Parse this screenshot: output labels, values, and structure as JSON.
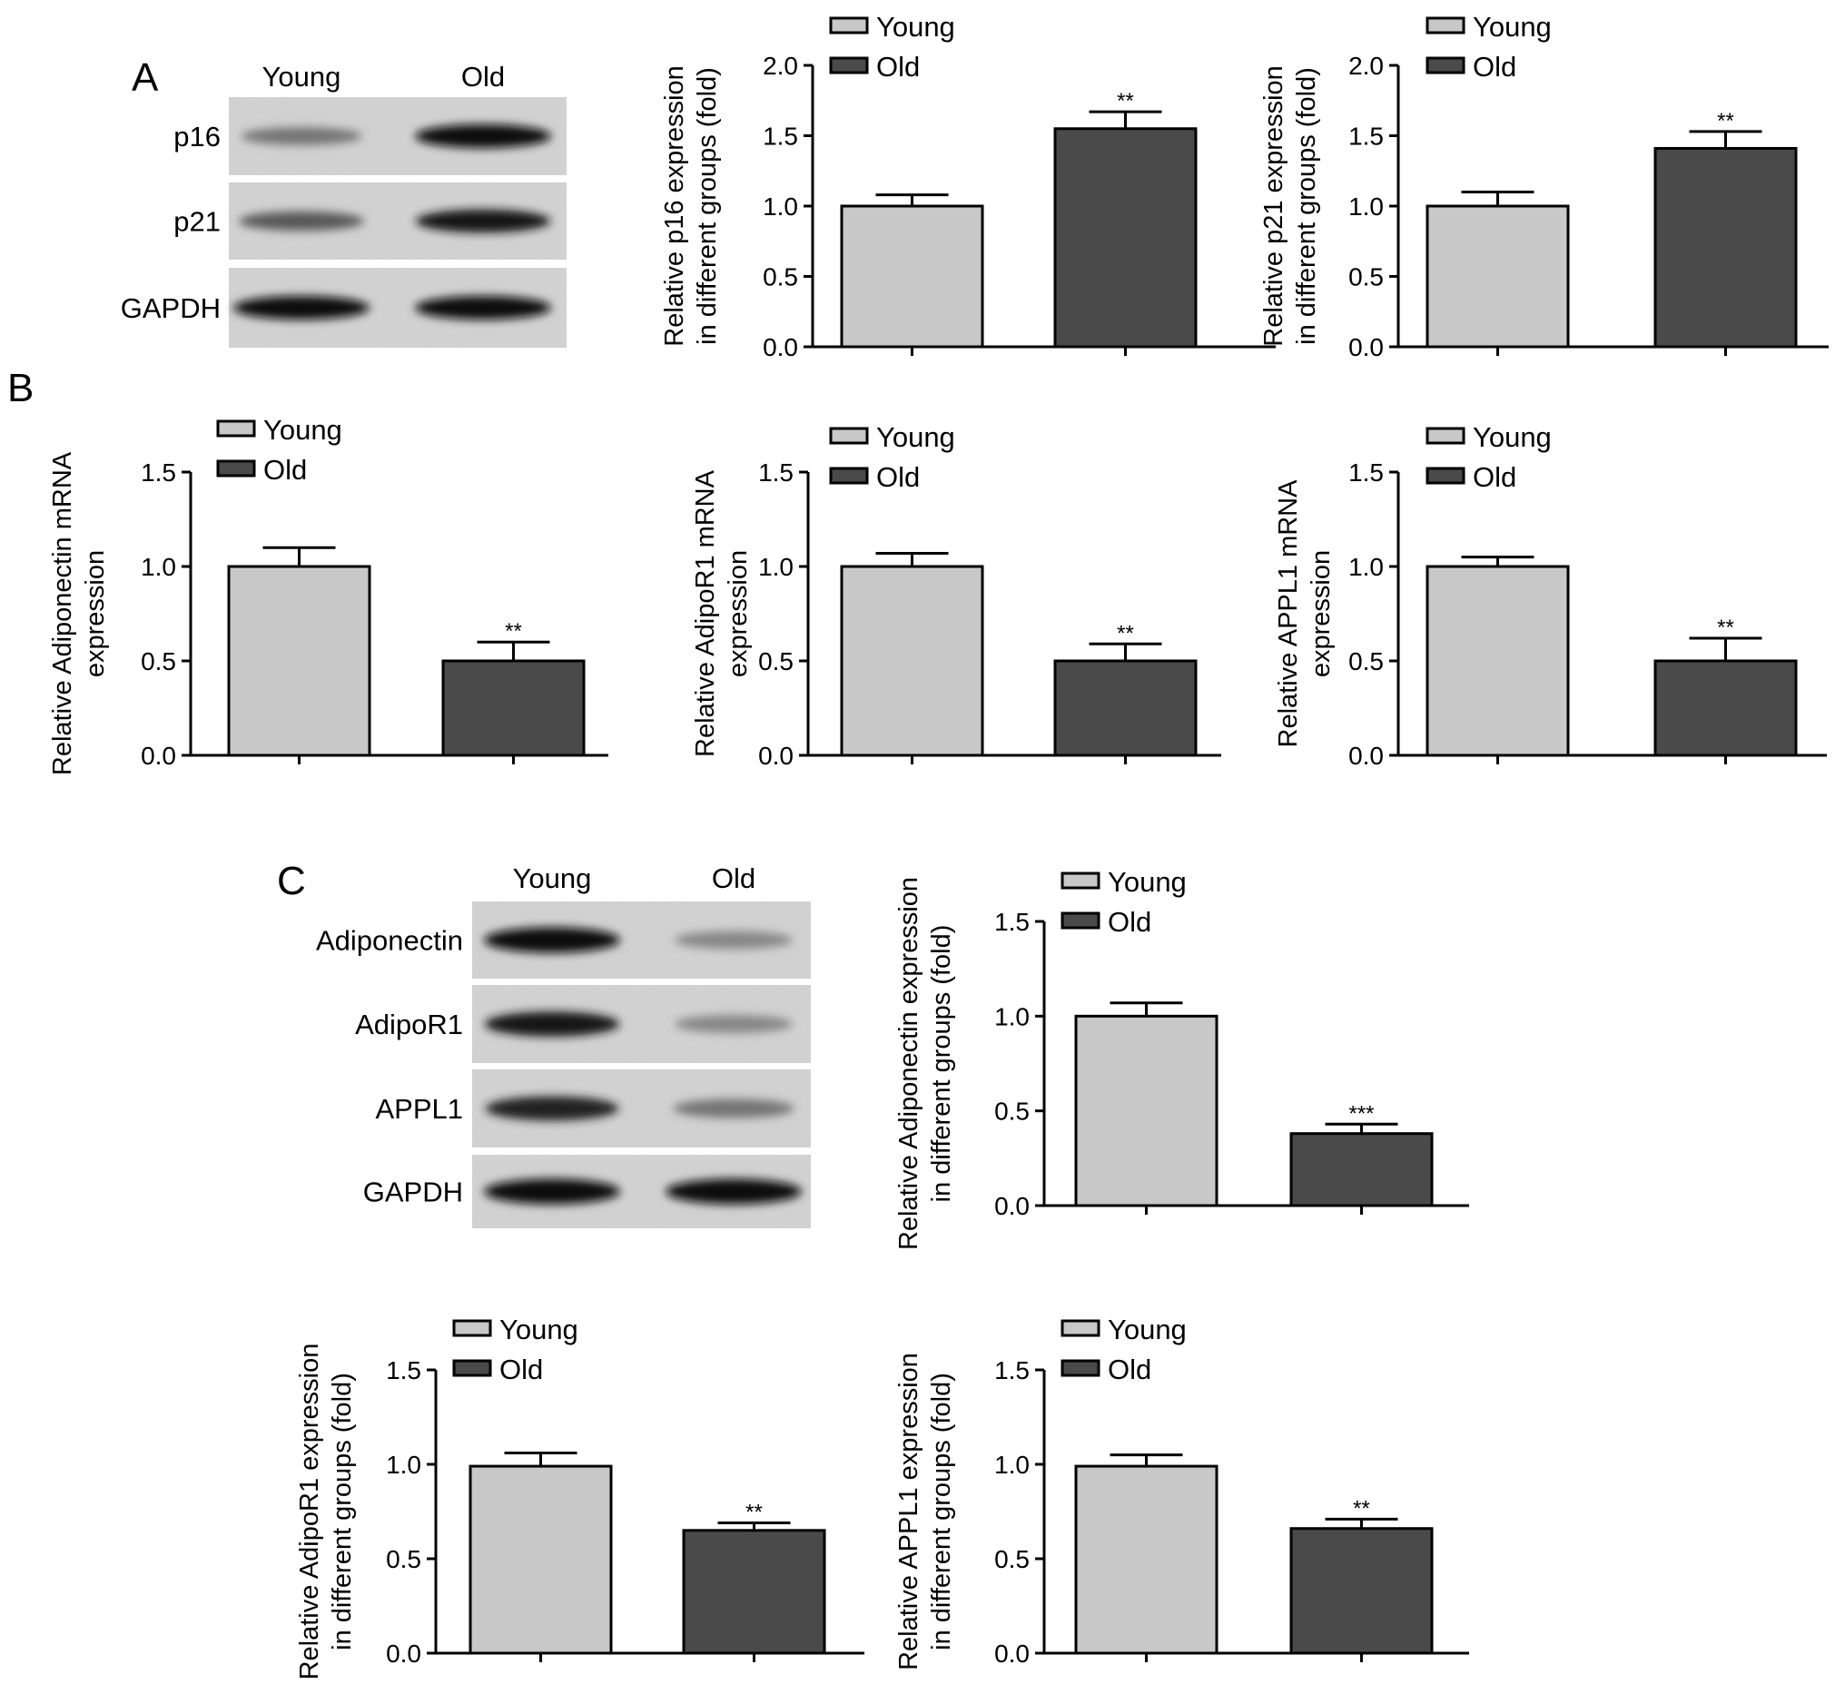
{
  "figure": {
    "panels": [
      {
        "letter": "A",
        "blot": {
          "lanes": [
            "Young",
            "Old"
          ],
          "rows": [
            {
              "label": "p16",
              "intensity": [
                0.45,
                1.0
              ]
            },
            {
              "label": "p21",
              "intensity": [
                0.6,
                0.95
              ]
            },
            {
              "label": "GAPDH",
              "intensity": [
                1.0,
                1.0
              ]
            }
          ]
        }
      },
      {
        "letter": "B"
      },
      {
        "letter": "C",
        "blot": {
          "lanes": [
            "Young",
            "Old"
          ],
          "rows": [
            {
              "label": "Adiponectin",
              "intensity": [
                1.0,
                0.35
              ]
            },
            {
              "label": "AdipoR1",
              "intensity": [
                0.95,
                0.35
              ]
            },
            {
              "label": "APPL1",
              "intensity": [
                0.9,
                0.45
              ]
            },
            {
              "label": "GAPDH",
              "intensity": [
                1.0,
                1.0
              ]
            }
          ]
        }
      }
    ]
  },
  "chart_data": [
    {
      "id": "A-p16",
      "type": "bar",
      "panel": "A",
      "categories": [
        "Young",
        "Old"
      ],
      "values": [
        1.0,
        1.55
      ],
      "errors": [
        0.08,
        0.12
      ],
      "significance": [
        "",
        "**"
      ],
      "ylabel": [
        "Relative p16 expression",
        "in different groups (fold)"
      ],
      "ylim": [
        0,
        2.0
      ],
      "yticks": [
        "0.0",
        "0.5",
        "1.0",
        "1.5",
        "2.0"
      ],
      "legend": [
        "Young",
        "Old"
      ],
      "legend_position": "top-left",
      "colors": [
        "#c8c8c8",
        "#4a4a4a"
      ],
      "grid": false
    },
    {
      "id": "A-p21",
      "type": "bar",
      "panel": "A",
      "categories": [
        "Young",
        "Old"
      ],
      "values": [
        1.0,
        1.41
      ],
      "errors": [
        0.1,
        0.12
      ],
      "significance": [
        "",
        "**"
      ],
      "ylabel": [
        "Relative p21 expression",
        "in different groups (fold)"
      ],
      "ylim": [
        0,
        2.0
      ],
      "yticks": [
        "0.0",
        "0.5",
        "1.0",
        "1.5",
        "2.0"
      ],
      "legend": [
        "Young",
        "Old"
      ],
      "legend_position": "top-left",
      "colors": [
        "#c8c8c8",
        "#4a4a4a"
      ],
      "grid": false
    },
    {
      "id": "B-adiponectin",
      "type": "bar",
      "panel": "B",
      "categories": [
        "Young",
        "Old"
      ],
      "values": [
        1.0,
        0.5
      ],
      "errors": [
        0.1,
        0.1
      ],
      "significance": [
        "",
        "**"
      ],
      "ylabel": [
        "Relative Adiponectin mRNA",
        "expression"
      ],
      "ylim": [
        0,
        1.5
      ],
      "yticks": [
        "0.0",
        "0.5",
        "1.0",
        "1.5"
      ],
      "legend": [
        "Young",
        "Old"
      ],
      "legend_position": "top-left",
      "colors": [
        "#c8c8c8",
        "#4a4a4a"
      ],
      "grid": false
    },
    {
      "id": "B-adipor1",
      "type": "bar",
      "panel": "B",
      "categories": [
        "Young",
        "Old"
      ],
      "values": [
        1.0,
        0.5
      ],
      "errors": [
        0.07,
        0.09
      ],
      "significance": [
        "",
        "**"
      ],
      "ylabel": [
        "Relative AdipoR1 mRNA",
        "expression"
      ],
      "ylim": [
        0,
        1.5
      ],
      "yticks": [
        "0.0",
        "0.5",
        "1.0",
        "1.5"
      ],
      "legend": [
        "Young",
        "Old"
      ],
      "legend_position": "top-left",
      "colors": [
        "#c8c8c8",
        "#4a4a4a"
      ],
      "grid": false
    },
    {
      "id": "B-appl1",
      "type": "bar",
      "panel": "B",
      "categories": [
        "Young",
        "Old"
      ],
      "values": [
        1.0,
        0.5
      ],
      "errors": [
        0.05,
        0.12
      ],
      "significance": [
        "",
        "**"
      ],
      "ylabel": [
        "Relative APPL1 mRNA",
        "expression"
      ],
      "ylim": [
        0,
        1.5
      ],
      "yticks": [
        "0.0",
        "0.5",
        "1.0",
        "1.5"
      ],
      "legend": [
        "Young",
        "Old"
      ],
      "legend_position": "top-left",
      "colors": [
        "#c8c8c8",
        "#4a4a4a"
      ],
      "grid": false
    },
    {
      "id": "C-adiponectin",
      "type": "bar",
      "panel": "C",
      "categories": [
        "Young",
        "Old"
      ],
      "values": [
        1.0,
        0.38
      ],
      "errors": [
        0.07,
        0.05
      ],
      "significance": [
        "",
        "***"
      ],
      "ylabel": [
        "Relative Adiponectin expression",
        "in different groups (fold)"
      ],
      "ylim": [
        0,
        1.5
      ],
      "yticks": [
        "0.0",
        "0.5",
        "1.0",
        "1.5"
      ],
      "legend": [
        "Young",
        "Old"
      ],
      "legend_position": "top-left",
      "colors": [
        "#c8c8c8",
        "#4a4a4a"
      ],
      "grid": false
    },
    {
      "id": "C-adipor1",
      "type": "bar",
      "panel": "C",
      "categories": [
        "Young",
        "Old"
      ],
      "values": [
        0.99,
        0.65
      ],
      "errors": [
        0.07,
        0.04
      ],
      "significance": [
        "",
        "**"
      ],
      "ylabel": [
        "Relative AdipoR1 expression",
        "in different groups (fold)"
      ],
      "ylim": [
        0,
        1.5
      ],
      "yticks": [
        "0.0",
        "0.5",
        "1.0",
        "1.5"
      ],
      "legend": [
        "Young",
        "Old"
      ],
      "legend_position": "top-left",
      "colors": [
        "#c8c8c8",
        "#4a4a4a"
      ],
      "grid": false
    },
    {
      "id": "C-appl1",
      "type": "bar",
      "panel": "C",
      "categories": [
        "Young",
        "Old"
      ],
      "values": [
        0.99,
        0.66
      ],
      "errors": [
        0.06,
        0.05
      ],
      "significance": [
        "",
        "**"
      ],
      "ylabel": [
        "Relative APPL1 expression",
        "in different groups (fold)"
      ],
      "ylim": [
        0,
        1.5
      ],
      "yticks": [
        "0.0",
        "0.5",
        "1.0",
        "1.5"
      ],
      "legend": [
        "Young",
        "Old"
      ],
      "legend_position": "top-left",
      "colors": [
        "#c8c8c8",
        "#4a4a4a"
      ],
      "grid": false
    }
  ]
}
